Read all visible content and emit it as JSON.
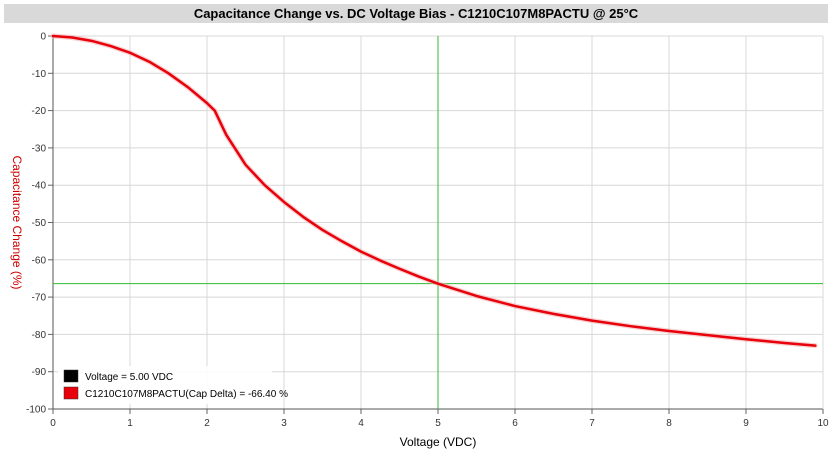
{
  "header": {
    "title": "Capacitance Change vs. DC Voltage Bias - C1210C107M8PACTU @ 25°C"
  },
  "colors": {
    "curve": "#e8000b",
    "cursor": "#33bb33",
    "grid": "#d8d8d8",
    "ylabel": "#cc0000"
  },
  "cursor": {
    "voltage": 5.0,
    "cap_change": -66.4
  },
  "chart_data": {
    "type": "line",
    "title": "Capacitance Change vs. DC Voltage Bias - C1210C107M8PACTU @ 25°C",
    "xlabel": "Voltage (VDC)",
    "ylabel": "Capacitance Change (%)",
    "xlim": [
      0,
      10
    ],
    "ylim": [
      -100,
      0
    ],
    "x_ticks": [
      "0",
      "1",
      "2",
      "3",
      "4",
      "5",
      "6",
      "7",
      "8",
      "9",
      "10"
    ],
    "y_ticks": [
      "0",
      "-10",
      "-20",
      "-30",
      "-40",
      "-50",
      "-60",
      "-70",
      "-80",
      "-90",
      "-100"
    ],
    "grid": true,
    "legend": "bottom-left",
    "series": [
      {
        "name": "C1210C107M8PACTU",
        "x": [
          0,
          0.25,
          0.5,
          0.75,
          1.0,
          1.25,
          1.5,
          1.75,
          2.0,
          2.1,
          2.25,
          2.5,
          2.75,
          3.0,
          3.25,
          3.5,
          3.75,
          4.0,
          4.25,
          4.5,
          4.75,
          5.0,
          5.5,
          6.0,
          6.5,
          7.0,
          7.5,
          8.0,
          8.5,
          9.0,
          9.5,
          9.9
        ],
        "y": [
          0,
          -0.4,
          -1.3,
          -2.7,
          -4.5,
          -6.9,
          -10.0,
          -13.7,
          -18.0,
          -20.0,
          -26.5,
          -34.5,
          -40.0,
          -44.5,
          -48.5,
          -52.0,
          -55.0,
          -57.8,
          -60.2,
          -62.4,
          -64.5,
          -66.4,
          -69.7,
          -72.4,
          -74.5,
          -76.3,
          -77.8,
          -79.1,
          -80.2,
          -81.3,
          -82.3,
          -83.0
        ]
      }
    ],
    "legend_entries": [
      {
        "swatch": "#000000",
        "text": "Voltage = 5.00 VDC"
      },
      {
        "swatch": "#e8000b",
        "text": "C1210C107M8PACTU(Cap Delta) = -66.40 %"
      }
    ]
  }
}
